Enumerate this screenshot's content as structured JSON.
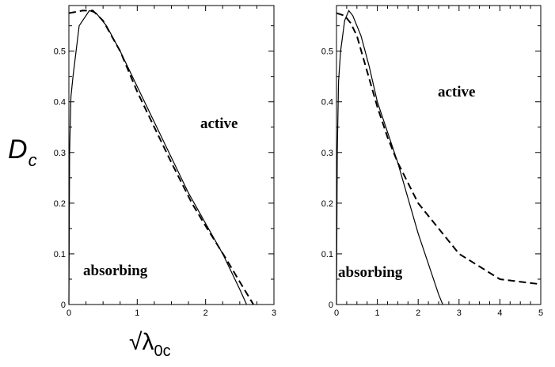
{
  "chart_data": [
    {
      "type": "line",
      "xlim": [
        0,
        3
      ],
      "ylim": [
        0,
        0.59
      ],
      "xticks": [
        "0",
        "1",
        "2",
        "3"
      ],
      "yticks": [
        "0",
        "0.1",
        "0.2",
        "0.3",
        "0.4",
        "0.5"
      ],
      "ylabel": {
        "main": "D",
        "sub": "c"
      },
      "xlabel": {
        "root": "√λ",
        "sub": "0c"
      },
      "grid": false,
      "annotations": [
        "active",
        "absorbing"
      ],
      "series": [
        {
          "style": "solid",
          "x": [
            0,
            0.01,
            0.03,
            0.06,
            0.15,
            0.3,
            0.4,
            0.55,
            0.75,
            1.0,
            1.25,
            1.5,
            1.75,
            2.0,
            2.25,
            2.5,
            2.6
          ],
          "y": [
            0,
            0.3,
            0.41,
            0.45,
            0.55,
            0.58,
            0.575,
            0.55,
            0.5,
            0.43,
            0.36,
            0.29,
            0.22,
            0.16,
            0.1,
            0.03,
            0
          ]
        },
        {
          "style": "dashed",
          "x": [
            0,
            0.2,
            0.35,
            0.5,
            0.75,
            1.0,
            1.25,
            1.5,
            1.8,
            2.0,
            2.3,
            2.5,
            2.7
          ],
          "y": [
            0.575,
            0.58,
            0.58,
            0.56,
            0.5,
            0.42,
            0.35,
            0.28,
            0.2,
            0.155,
            0.09,
            0.045,
            0
          ]
        }
      ]
    },
    {
      "type": "line",
      "xlim": [
        0,
        5
      ],
      "ylim": [
        0,
        0.59
      ],
      "xticks": [
        "0",
        "1",
        "2",
        "3",
        "4",
        "5"
      ],
      "yticks": [
        "0",
        "0.1",
        "0.2",
        "0.3",
        "0.4",
        "0.5"
      ],
      "grid": false,
      "annotations": [
        "active",
        "absorbing"
      ],
      "series": [
        {
          "style": "solid",
          "x": [
            0,
            0.02,
            0.05,
            0.1,
            0.2,
            0.3,
            0.4,
            0.6,
            0.8,
            1.0,
            1.25,
            1.5,
            1.75,
            2.0,
            2.25,
            2.5,
            2.6
          ],
          "y": [
            0,
            0.3,
            0.44,
            0.5,
            0.56,
            0.58,
            0.57,
            0.53,
            0.47,
            0.4,
            0.34,
            0.28,
            0.21,
            0.14,
            0.08,
            0.02,
            0
          ]
        },
        {
          "style": "dashed",
          "x": [
            0,
            0.2,
            0.35,
            0.5,
            0.75,
            1.0,
            1.25,
            1.5,
            2.0,
            2.5,
            3.0,
            3.5,
            4.0,
            4.5,
            5.0
          ],
          "y": [
            0.575,
            0.57,
            0.555,
            0.53,
            0.46,
            0.39,
            0.33,
            0.28,
            0.2,
            0.15,
            0.1,
            0.075,
            0.05,
            0.045,
            0.04
          ]
        }
      ]
    }
  ]
}
